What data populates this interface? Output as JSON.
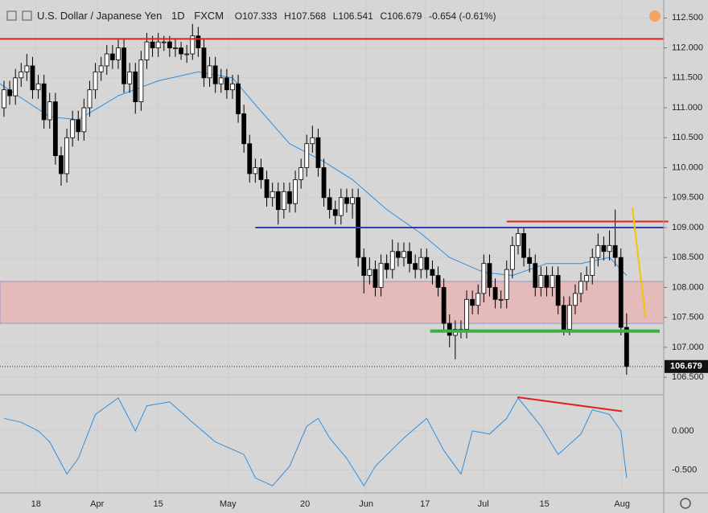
{
  "header": {
    "symbol": "U.S. Dollar / Japanese Yen",
    "interval": "1D",
    "source": "FXCM",
    "open_label": "O107.333",
    "high_label": "H107.568",
    "low_label": "L106.541",
    "close_label": "C106.679",
    "change": "-0.654 (-0.61%)"
  },
  "chart_data": {
    "type": "candlestick",
    "open": [
      111.0,
      111.3,
      111.2,
      111.5,
      111.6,
      111.7,
      111.3,
      111.4,
      110.8,
      111.1,
      110.2,
      109.9,
      110.5,
      110.8,
      110.6,
      111.0,
      111.3,
      111.6,
      111.7,
      111.9,
      111.8,
      112.0,
      111.4,
      111.6,
      111.1,
      111.8,
      112.1,
      112.0,
      112.1,
      112.1,
      112.0,
      112.0,
      111.9,
      111.9,
      112.2,
      112.0,
      111.5,
      111.7,
      111.4,
      111.5,
      111.3,
      111.4,
      110.9,
      110.4,
      109.9,
      110.0,
      109.8,
      109.5,
      109.6,
      109.3,
      109.6,
      109.4,
      109.8,
      110.0,
      110.4,
      110.5,
      110.0,
      109.5,
      109.3,
      109.2,
      109.5,
      109.4,
      109.5,
      108.5,
      108.2,
      108.3,
      108.0,
      108.4,
      108.3,
      108.6,
      108.5,
      108.6,
      108.4,
      108.3,
      108.5,
      108.3,
      108.2,
      108.0,
      107.4,
      107.2,
      107.3,
      107.3,
      107.8,
      107.7,
      107.9,
      108.4,
      108.0,
      107.8,
      107.8,
      108.3,
      108.7,
      108.9,
      108.5,
      108.4,
      108.0,
      108.2,
      108.0,
      108.2,
      107.7,
      107.3,
      107.7,
      107.9,
      108.1,
      108.2,
      108.5,
      108.7,
      108.6,
      108.7,
      108.5,
      107.333
    ],
    "high": [
      111.45,
      111.45,
      111.65,
      111.75,
      111.9,
      111.85,
      111.55,
      111.55,
      111.25,
      111.25,
      110.35,
      110.65,
      110.95,
      110.95,
      111.15,
      111.45,
      111.75,
      111.85,
      112.05,
      112.05,
      112.15,
      112.15,
      111.75,
      111.75,
      111.95,
      112.25,
      112.2,
      112.25,
      112.2,
      112.2,
      112.15,
      112.1,
      112.05,
      112.4,
      112.35,
      112.15,
      111.85,
      111.85,
      111.65,
      111.65,
      111.55,
      111.55,
      111.05,
      110.55,
      110.15,
      110.15,
      109.95,
      109.75,
      109.75,
      109.75,
      109.75,
      109.95,
      110.15,
      110.55,
      110.7,
      110.65,
      110.15,
      109.65,
      109.45,
      109.65,
      109.65,
      109.65,
      109.65,
      108.65,
      108.5,
      108.45,
      108.55,
      108.55,
      108.8,
      108.75,
      108.75,
      108.75,
      108.55,
      108.65,
      108.65,
      108.45,
      108.35,
      108.15,
      107.55,
      107.45,
      107.45,
      107.95,
      107.95,
      108.05,
      108.55,
      108.55,
      108.15,
      107.95,
      108.45,
      108.85,
      109.0,
      109.0,
      108.65,
      108.55,
      108.35,
      108.35,
      108.35,
      108.35,
      107.85,
      107.85,
      108.05,
      108.25,
      108.35,
      108.65,
      108.9,
      108.85,
      108.95,
      109.3,
      108.65,
      107.568
    ],
    "low": [
      110.85,
      111.05,
      111.05,
      111.35,
      111.45,
      111.15,
      111.15,
      110.65,
      110.65,
      110.05,
      109.7,
      109.75,
      110.35,
      110.45,
      110.45,
      110.85,
      111.15,
      111.45,
      111.55,
      111.65,
      111.65,
      111.25,
      111.25,
      110.9,
      110.95,
      111.65,
      111.85,
      111.85,
      111.95,
      111.85,
      111.85,
      111.8,
      111.75,
      111.8,
      111.85,
      111.35,
      111.35,
      111.25,
      111.25,
      111.15,
      111.15,
      110.75,
      110.25,
      109.75,
      109.75,
      109.65,
      109.35,
      109.35,
      109.05,
      109.15,
      109.25,
      109.25,
      109.65,
      109.85,
      110.25,
      109.85,
      109.35,
      109.15,
      109.05,
      109.05,
      109.25,
      109.15,
      108.35,
      107.9,
      108.05,
      107.85,
      107.85,
      108.15,
      108.15,
      108.35,
      108.35,
      108.25,
      108.15,
      108.15,
      108.15,
      108.05,
      107.85,
      107.25,
      107.0,
      106.8,
      107.15,
      107.15,
      107.55,
      107.55,
      107.75,
      107.85,
      107.65,
      107.65,
      107.65,
      108.15,
      108.55,
      108.35,
      108.25,
      107.85,
      107.85,
      107.85,
      107.85,
      107.55,
      107.2,
      107.2,
      107.55,
      107.75,
      107.95,
      108.05,
      108.35,
      108.45,
      108.45,
      108.35,
      107.2,
      106.541
    ],
    "close": [
      111.3,
      111.2,
      111.5,
      111.6,
      111.7,
      111.3,
      111.4,
      110.8,
      111.1,
      110.2,
      109.9,
      110.5,
      110.8,
      110.6,
      111.0,
      111.3,
      111.6,
      111.7,
      111.9,
      111.8,
      112.0,
      111.4,
      111.6,
      111.1,
      111.8,
      112.1,
      112.0,
      112.1,
      112.1,
      112.0,
      112.0,
      111.9,
      111.9,
      112.2,
      112.0,
      111.5,
      111.7,
      111.4,
      111.5,
      111.3,
      111.4,
      110.9,
      110.4,
      109.9,
      110.0,
      109.8,
      109.5,
      109.6,
      109.3,
      109.6,
      109.4,
      109.8,
      110.0,
      110.4,
      110.5,
      110.0,
      109.5,
      109.3,
      109.2,
      109.5,
      109.4,
      109.5,
      108.5,
      108.2,
      108.3,
      108.0,
      108.4,
      108.3,
      108.6,
      108.5,
      108.6,
      108.4,
      108.3,
      108.5,
      108.3,
      108.2,
      108.0,
      107.4,
      107.2,
      107.3,
      107.3,
      107.8,
      107.7,
      107.9,
      108.4,
      108.0,
      107.8,
      107.8,
      108.3,
      108.7,
      108.9,
      108.5,
      108.4,
      108.0,
      108.2,
      108.0,
      108.2,
      107.7,
      107.3,
      107.7,
      107.9,
      108.1,
      108.2,
      108.5,
      108.7,
      108.6,
      108.7,
      108.5,
      107.333,
      106.679
    ],
    "up_color": "#ffffff",
    "down_color": "#000000",
    "xlim": [
      0.3,
      116.5
    ],
    "ylim": [
      106.22,
      112.8
    ],
    "xticks": [
      {
        "value": 6.6,
        "label": "18"
      },
      {
        "value": 17.3,
        "label": "Apr"
      },
      {
        "value": 28,
        "label": "15"
      },
      {
        "value": 40.2,
        "label": "May"
      },
      {
        "value": 53.7,
        "label": "20"
      },
      {
        "value": 64.4,
        "label": "Jun"
      },
      {
        "value": 74.7,
        "label": "17"
      },
      {
        "value": 84.9,
        "label": "Jul"
      },
      {
        "value": 95.6,
        "label": "15"
      },
      {
        "value": 109.2,
        "label": "Aug"
      }
    ],
    "yticks": [
      {
        "value": 112.5,
        "label": "112.500"
      },
      {
        "value": 112,
        "label": "112.000"
      },
      {
        "value": 111.5,
        "label": "111.500"
      },
      {
        "value": 111,
        "label": "111.000"
      },
      {
        "value": 110.5,
        "label": "110.500"
      },
      {
        "value": 110,
        "label": "110.000"
      },
      {
        "value": 109.5,
        "label": "109.500"
      },
      {
        "value": 109,
        "label": "109.000"
      },
      {
        "value": 108.5,
        "label": "108.500"
      },
      {
        "value": 108,
        "label": "108.000"
      },
      {
        "value": 107.5,
        "label": "107.500"
      },
      {
        "value": 107,
        "label": "107.000"
      },
      {
        "value": 106.5,
        "label": "106.500"
      }
    ],
    "grid": true,
    "ma": {
      "color": "#2f8fe0",
      "x": [
        0.3,
        9,
        14,
        21,
        28,
        35,
        41,
        45,
        51,
        57,
        62,
        68,
        74,
        79,
        85,
        90,
        96,
        102,
        107,
        110
      ],
      "values": [
        111.4,
        110.85,
        110.8,
        111.2,
        111.45,
        111.6,
        111.5,
        111.05,
        110.4,
        110.1,
        109.8,
        109.3,
        108.9,
        108.5,
        108.25,
        108.2,
        108.4,
        108.4,
        108.5,
        108.2
      ]
    },
    "zone": {
      "color": "#e8b0b0",
      "y": [
        107.4,
        108.1
      ]
    },
    "drawings": [
      {
        "color": "#e0201c",
        "x": [
          0.3,
          116.5
        ],
        "y": [
          112.15,
          112.15
        ]
      },
      {
        "color": "#3040b0",
        "x": [
          45,
          116.5
        ],
        "y": [
          109.0,
          109.0
        ]
      },
      {
        "color": "#e0201c",
        "x": [
          89,
          117.3
        ],
        "y": [
          109.1,
          109.1
        ]
      },
      {
        "color": "#3cb043",
        "x": [
          75.6,
          115.8
        ],
        "y": [
          107.27,
          107.27
        ]
      },
      {
        "color": "#f5c400",
        "x": [
          111,
          113.3
        ],
        "y": [
          109.33,
          107.5
        ]
      }
    ],
    "oscillator": {
      "color": "#2f8fe0",
      "ylim": [
        -0.78,
        0.45
      ],
      "yticks": [
        {
          "value": 0,
          "label": "0.000"
        },
        {
          "value": -0.5,
          "label": "-0.500"
        }
      ],
      "x": [
        1,
        4,
        7,
        9,
        12,
        14,
        17,
        21,
        24,
        26,
        30,
        34,
        38,
        43,
        45,
        48,
        51,
        54,
        56,
        58,
        61,
        64,
        66,
        71,
        75,
        78,
        81,
        83,
        86,
        89,
        91,
        95,
        98,
        102,
        104,
        107,
        109,
        110
      ],
      "values": [
        0.16,
        0.11,
        0,
        -0.14,
        -0.55,
        -0.35,
        0.21,
        0.42,
        0,
        0.32,
        0.37,
        0.11,
        -0.14,
        -0.3,
        -0.6,
        -0.7,
        -0.45,
        0.06,
        0.16,
        -0.09,
        -0.35,
        -0.7,
        -0.45,
        -0.09,
        0.16,
        -0.25,
        -0.55,
        0,
        -0.04,
        0.16,
        0.42,
        0.06,
        -0.3,
        -0.04,
        0.27,
        0.21,
        0,
        -0.6
      ],
      "drawings": [
        {
          "color": "#e0201c",
          "x": [
            90.9,
            109.2
          ],
          "y": [
            0.43,
            0.25
          ]
        }
      ]
    }
  }
}
